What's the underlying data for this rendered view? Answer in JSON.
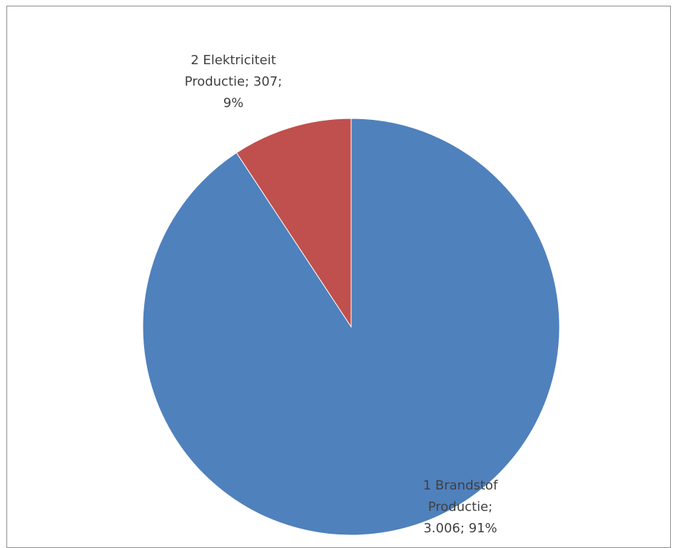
{
  "chart_data": {
    "type": "pie",
    "title": "",
    "slices": [
      {
        "name": "1 Brandstof Productie",
        "value": 3006,
        "percent": 91,
        "color": "#4f81bd",
        "label_lines": [
          "1 Brandstof",
          "Productie;",
          "3.006; 91%"
        ]
      },
      {
        "name": "2 Elektriciteit Productie",
        "value": 307,
        "percent": 9,
        "color": "#c0504d",
        "label_lines": [
          "2 Elektriciteit",
          "Productie; 307;",
          "9%"
        ]
      }
    ],
    "start_angle_deg": 0,
    "direction": "clockwise",
    "legend": "none"
  }
}
